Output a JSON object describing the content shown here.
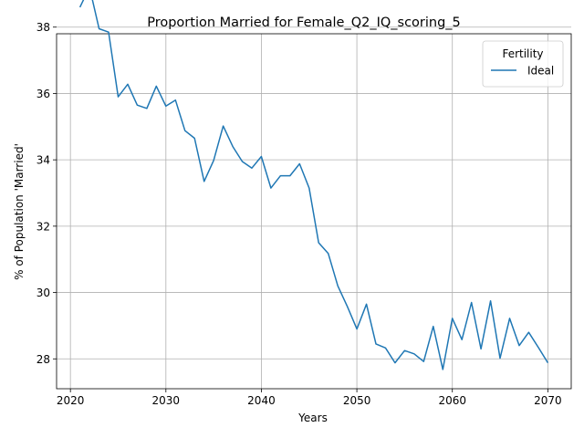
{
  "chart_data": {
    "type": "line",
    "title": "Proportion Married for Female_Q2_IQ_scoring_5",
    "xlabel": "Years",
    "ylabel": "% of Population 'Married'",
    "xlim": [
      2018.55,
      2072.45
    ],
    "ylim": [
      27.1,
      37.8
    ],
    "xticks": [
      2020,
      2030,
      2040,
      2050,
      2060,
      2070
    ],
    "yticks": [
      28,
      30,
      32,
      34,
      36,
      38
    ],
    "grid": true,
    "legend": {
      "title": "Fertility",
      "placement": "top-right"
    },
    "series": [
      {
        "name": "Ideal",
        "color": "#1f77b4",
        "x": [
          2021,
          2022,
          2023,
          2024,
          2025,
          2026,
          2027,
          2028,
          2029,
          2030,
          2031,
          2032,
          2033,
          2034,
          2035,
          2036,
          2037,
          2038,
          2039,
          2040,
          2041,
          2042,
          2043,
          2044,
          2045,
          2046,
          2047,
          2048,
          2049,
          2050,
          2051,
          2052,
          2053,
          2054,
          2055,
          2056,
          2057,
          2058,
          2059,
          2060,
          2061,
          2062,
          2063,
          2064,
          2065,
          2066,
          2067,
          2068,
          2069,
          2070
        ],
        "y": [
          38.6,
          39.2,
          37.95,
          37.85,
          35.9,
          36.28,
          35.65,
          35.55,
          36.22,
          35.62,
          35.8,
          34.88,
          34.65,
          33.35,
          33.98,
          35.02,
          34.4,
          33.95,
          33.75,
          34.1,
          33.15,
          33.52,
          33.52,
          33.88,
          33.15,
          31.5,
          31.18,
          30.2,
          29.58,
          28.9,
          29.65,
          28.45,
          28.33,
          27.88,
          28.25,
          28.15,
          27.92,
          28.98,
          27.68,
          29.22,
          28.58,
          29.7,
          28.3,
          29.75,
          28.02,
          29.22,
          28.4,
          28.8,
          28.35,
          27.88
        ]
      }
    ]
  }
}
